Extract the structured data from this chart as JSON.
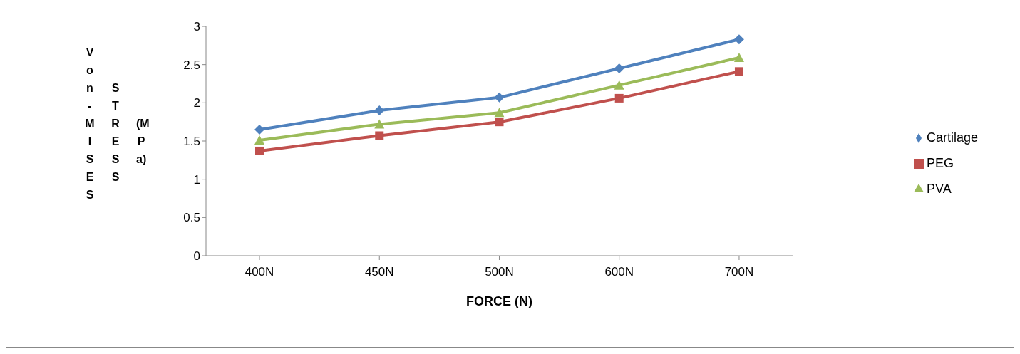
{
  "chart_data": {
    "type": "line",
    "xlabel": "FORCE (N)",
    "ylabel": "Von-MISES STRESS (MPa)",
    "categories": [
      "400N",
      "450N",
      "500N",
      "600N",
      "700N"
    ],
    "series": [
      {
        "name": "Cartilage",
        "color": "#4f81bd",
        "marker": "diamond",
        "values": [
          1.65,
          1.9,
          2.07,
          2.45,
          2.83
        ]
      },
      {
        "name": "PEG",
        "color": "#c0504d",
        "marker": "square",
        "values": [
          1.37,
          1.57,
          1.75,
          2.06,
          2.41
        ]
      },
      {
        "name": "PVA",
        "color": "#9bbb59",
        "marker": "triangle",
        "values": [
          1.51,
          1.72,
          1.87,
          2.23,
          2.59
        ]
      }
    ],
    "ylim": [
      0,
      3
    ],
    "yticks": [
      0,
      0.5,
      1,
      1.5,
      2,
      2.5,
      3
    ],
    "grid": false,
    "legend": "right"
  }
}
